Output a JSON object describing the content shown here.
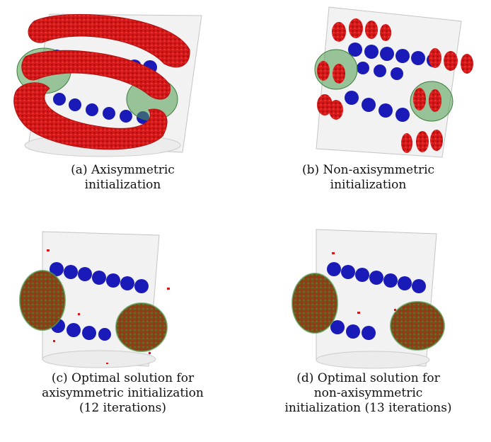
{
  "figure": {
    "panels": [
      {
        "caption": "(a) Axisymmetric\ninitialization"
      },
      {
        "caption": "(b) Non-axisymmetric\ninitialization"
      },
      {
        "caption": "(c) Optimal solution for\naxisymmetric initialization\n(12 iterations)"
      },
      {
        "caption": "(d) Optimal solution for\nnon-axisymmetric\ninitialization (13 iterations)"
      }
    ],
    "colors": {
      "coil": "#1a1ab8",
      "material": "#d81818",
      "sphere": "#4f9a4f",
      "cylinder_fill": "#f1f1f1",
      "cylinder_edge": "#c4c4c4"
    }
  }
}
